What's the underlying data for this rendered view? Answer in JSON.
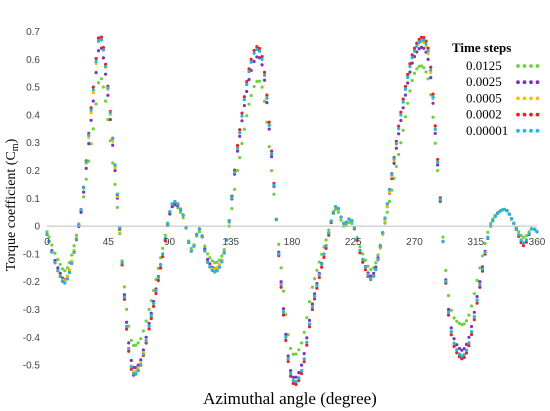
{
  "chart_data": {
    "type": "scatter",
    "xlabel": "Azimuthal angle (degree)",
    "ylabel_main": "Torque coefficient (C",
    "ylabel_sub": "m",
    "ylabel_close": ")",
    "xlim": [
      0,
      360
    ],
    "ylim": [
      -0.55,
      0.72
    ],
    "x_ticks": [
      0,
      45,
      90,
      135,
      180,
      225,
      270,
      315,
      360
    ],
    "x_tick_labels": [
      "0",
      "45",
      "90",
      "135",
      "180",
      "225",
      "270",
      "315",
      "360"
    ],
    "y_ticks": [
      -0.5,
      -0.4,
      -0.3,
      -0.2,
      -0.1,
      0,
      0.1,
      0.2,
      0.3,
      0.4,
      0.5,
      0.6,
      0.7
    ],
    "y_tick_labels": [
      "-0.5",
      "-0.4",
      "-0.3",
      "-0.2",
      "-0.1",
      "0",
      "0.1",
      "0.2",
      "0.3",
      "0.4",
      "0.5",
      "0.6",
      "0.7"
    ],
    "grid": false,
    "legend": {
      "title": "Time steps",
      "placement": "top-right"
    },
    "series": [
      {
        "name": "0.0125",
        "color": "#6fd13a",
        "x": [
          0,
          8,
          15,
          25,
          34,
          40,
          50,
          60,
          67,
          75,
          85,
          92,
          100,
          106,
          112,
          118,
          125,
          132,
          140,
          150,
          158,
          165,
          172,
          179,
          187,
          195,
          205,
          212,
          218,
          224,
          232,
          240,
          250,
          260,
          270,
          280,
          287,
          295,
          303,
          310,
          318,
          326,
          336,
          343,
          350,
          356,
          360
        ],
        "y": [
          -0.02,
          -0.12,
          -0.15,
          0.05,
          0.35,
          0.53,
          0.15,
          -0.36,
          -0.42,
          -0.3,
          -0.08,
          0.07,
          0.03,
          -0.08,
          -0.02,
          -0.1,
          -0.13,
          -0.05,
          0.2,
          0.47,
          0.5,
          0.2,
          -0.15,
          -0.44,
          -0.42,
          -0.22,
          -0.05,
          0.06,
          0.0,
          0.01,
          -0.1,
          -0.15,
          0.05,
          0.3,
          0.55,
          0.53,
          0.2,
          -0.25,
          -0.35,
          -0.32,
          -0.15,
          0.01,
          0.06,
          0.01,
          -0.04,
          -0.01,
          -0.02
        ]
      },
      {
        "name": "0.0025",
        "color": "#7b35b8",
        "x": [
          0,
          8,
          15,
          25,
          34,
          40,
          50,
          60,
          67,
          75,
          85,
          92,
          100,
          106,
          112,
          118,
          125,
          132,
          140,
          150,
          158,
          165,
          172,
          179,
          187,
          195,
          205,
          212,
          218,
          224,
          232,
          240,
          250,
          260,
          270,
          280,
          287,
          295,
          303,
          310,
          318,
          326,
          336,
          343,
          350,
          356,
          360
        ],
        "y": [
          -0.03,
          -0.15,
          -0.18,
          0.05,
          0.45,
          0.64,
          0.2,
          -0.42,
          -0.5,
          -0.35,
          -0.1,
          0.07,
          0.04,
          -0.09,
          -0.01,
          -0.12,
          -0.15,
          -0.05,
          0.27,
          0.56,
          0.58,
          0.25,
          -0.2,
          -0.52,
          -0.5,
          -0.28,
          -0.07,
          0.07,
          0.01,
          0.02,
          -0.12,
          -0.17,
          0.07,
          0.38,
          0.61,
          0.6,
          0.22,
          -0.3,
          -0.44,
          -0.4,
          -0.2,
          0.0,
          0.06,
          0.01,
          -0.06,
          -0.01,
          -0.02
        ]
      },
      {
        "name": "0.0005",
        "color": "#f2c200",
        "x": [
          0,
          8,
          15,
          25,
          34,
          40,
          50,
          60,
          67,
          75,
          85,
          92,
          100,
          106,
          112,
          118,
          125,
          132,
          140,
          150,
          158,
          165,
          172,
          179,
          187,
          195,
          205,
          212,
          218,
          224,
          232,
          240,
          250,
          260,
          270,
          280,
          287,
          295,
          303,
          310,
          318,
          326,
          336,
          343,
          350,
          356,
          360
        ],
        "y": [
          -0.03,
          -0.16,
          -0.18,
          0.06,
          0.48,
          0.67,
          0.21,
          -0.44,
          -0.51,
          -0.36,
          -0.1,
          0.08,
          0.04,
          -0.09,
          -0.01,
          -0.13,
          -0.15,
          -0.05,
          0.28,
          0.59,
          0.6,
          0.26,
          -0.21,
          -0.53,
          -0.52,
          -0.29,
          -0.07,
          0.07,
          0.01,
          0.02,
          -0.12,
          -0.18,
          0.07,
          0.4,
          0.63,
          0.62,
          0.23,
          -0.31,
          -0.46,
          -0.42,
          -0.21,
          0.0,
          0.06,
          0.01,
          -0.06,
          -0.01,
          -0.02
        ]
      },
      {
        "name": "0.0002",
        "color": "#e8231e",
        "x": [
          0,
          8,
          15,
          25,
          34,
          40,
          50,
          60,
          67,
          75,
          85,
          92,
          100,
          106,
          112,
          118,
          125,
          132,
          140,
          150,
          158,
          165,
          172,
          179,
          187,
          195,
          205,
          212,
          218,
          224,
          232,
          240,
          250,
          260,
          270,
          280,
          287,
          295,
          303,
          310,
          318,
          326,
          336,
          343,
          350,
          356,
          360
        ],
        "y": [
          -0.03,
          -0.16,
          -0.19,
          0.06,
          0.5,
          0.68,
          0.22,
          -0.45,
          -0.52,
          -0.37,
          -0.11,
          0.08,
          0.04,
          -0.09,
          -0.01,
          -0.13,
          -0.16,
          -0.05,
          0.29,
          0.6,
          0.61,
          0.27,
          -0.22,
          -0.54,
          -0.53,
          -0.3,
          -0.08,
          0.07,
          0.01,
          0.02,
          -0.13,
          -0.18,
          0.08,
          0.41,
          0.64,
          0.64,
          0.24,
          -0.32,
          -0.47,
          -0.43,
          -0.22,
          0.0,
          0.06,
          0.01,
          -0.07,
          -0.01,
          -0.02
        ]
      },
      {
        "name": "0.00001",
        "color": "#1fb8e8",
        "x": [
          0,
          8,
          15,
          25,
          34,
          40,
          50,
          60,
          67,
          75,
          85,
          92,
          100,
          106,
          112,
          118,
          125,
          132,
          140,
          150,
          158,
          165,
          172,
          179,
          187,
          195,
          205,
          212,
          218,
          224,
          232,
          240,
          250,
          260,
          270,
          280,
          287,
          295,
          303,
          310,
          318,
          326,
          336,
          343,
          350,
          356,
          360
        ],
        "y": [
          -0.03,
          -0.16,
          -0.19,
          0.06,
          0.49,
          0.67,
          0.22,
          -0.44,
          -0.52,
          -0.36,
          -0.1,
          0.08,
          0.04,
          -0.09,
          -0.01,
          -0.13,
          -0.16,
          -0.05,
          0.28,
          0.59,
          0.6,
          0.26,
          -0.21,
          -0.53,
          -0.52,
          -0.29,
          -0.07,
          0.07,
          0.01,
          0.02,
          -0.12,
          -0.18,
          0.08,
          0.4,
          0.63,
          0.63,
          0.23,
          -0.31,
          -0.46,
          -0.42,
          -0.21,
          0.0,
          0.06,
          0.01,
          -0.06,
          -0.01,
          -0.02
        ]
      }
    ]
  }
}
